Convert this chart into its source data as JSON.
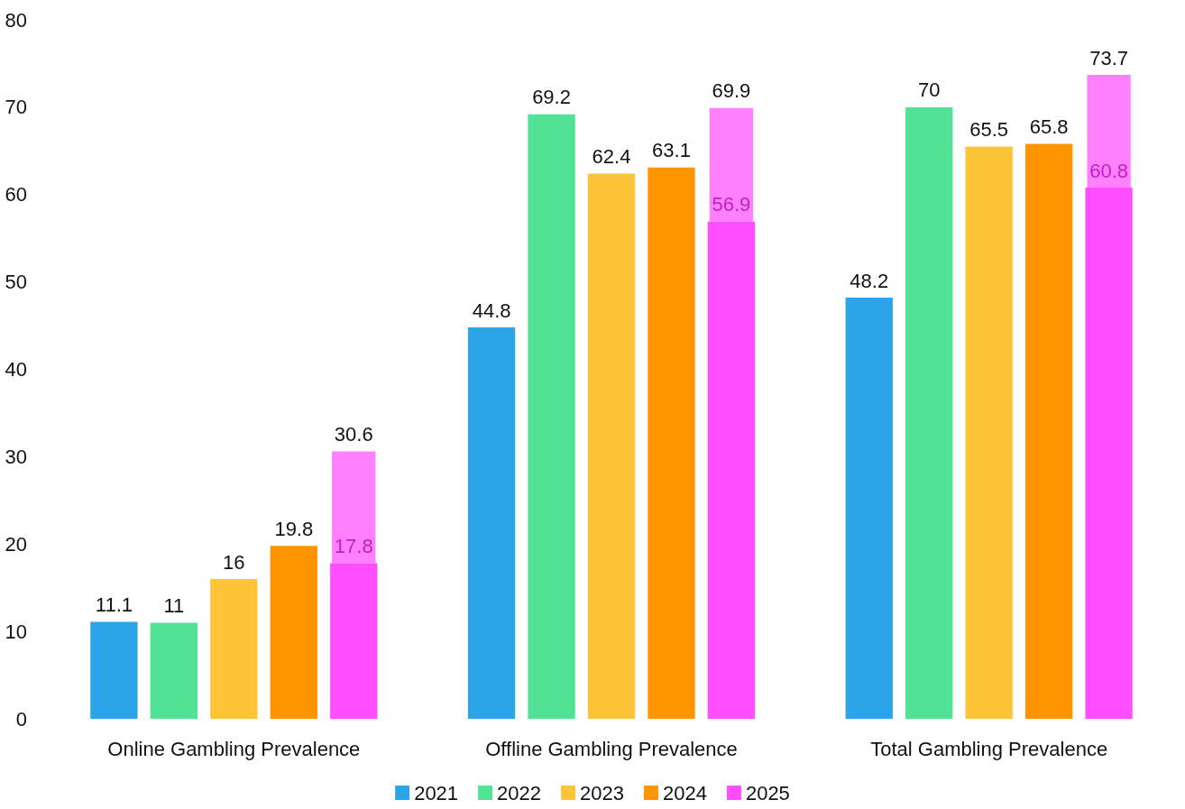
{
  "chart_data": {
    "type": "bar",
    "categories": [
      "Online Gambling Prevalence",
      "Offline Gambling Prevalence",
      "Total Gambling Prevalence"
    ],
    "series": [
      {
        "name": "2021",
        "color": "#2ca5e8",
        "values": [
          11.1,
          44.8,
          48.2
        ],
        "value_labels": [
          "11.1",
          "44.8",
          "48.2"
        ]
      },
      {
        "name": "2022",
        "color": "#52e296",
        "values": [
          11,
          69.2,
          70
        ],
        "value_labels": [
          "11",
          "69.2",
          "70"
        ]
      },
      {
        "name": "2023",
        "color": "#fec438",
        "values": [
          16,
          62.4,
          65.5
        ],
        "value_labels": [
          "16",
          "62.4",
          "65.5"
        ]
      },
      {
        "name": "2024",
        "color": "#fe9400",
        "values": [
          19.8,
          63.1,
          65.8
        ],
        "value_labels": [
          "19.8",
          "63.1",
          "65.8"
        ]
      },
      {
        "name": "2025",
        "color": "#ff4dff",
        "values": [
          17.8,
          56.9,
          60.8
        ],
        "value_labels": [
          "17.8",
          "56.9",
          "60.8"
        ]
      },
      {
        "color": "#ff80ff",
        "values": [
          12.8,
          13.0,
          12.9
        ],
        "base": [
          17.8,
          56.9,
          60.8
        ],
        "value_labels": [
          "30.6",
          "69.9",
          "73.7"
        ]
      }
    ],
    "ylim": [
      0,
      80
    ],
    "yticks": [
      0,
      10,
      20,
      30,
      40,
      50,
      60,
      70,
      80
    ],
    "grid": false,
    "legend": "bottom"
  }
}
